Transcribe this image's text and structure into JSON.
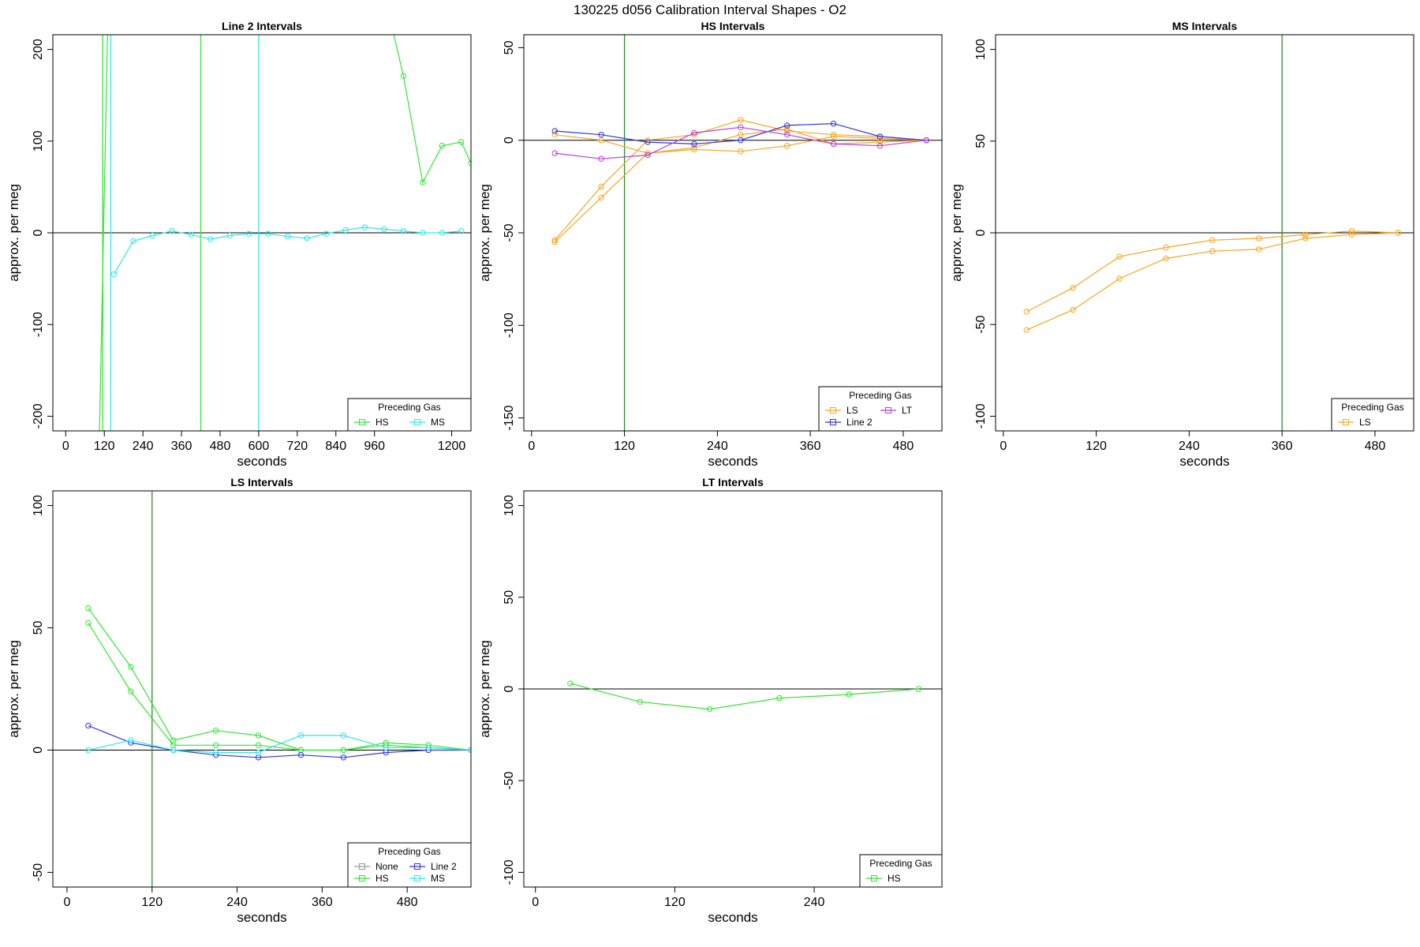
{
  "figure_title": "130225   d056   Calibration Interval Shapes - O2",
  "colors": {
    "None": "#999999",
    "HS": "#33e633",
    "MS": "#33e6e6",
    "LS": "#f5a623",
    "Line 2": "#3333e6",
    "LT": "#b340e6",
    "zero_line": "#000000",
    "HS_vline": "#2e8b2e"
  },
  "chart_data": [
    {
      "type": "line",
      "title": "Line 2 Intervals",
      "xlabel": "seconds",
      "ylabel": "approx. per meg",
      "xlim": [
        -40,
        1260
      ],
      "ylim": [
        -216,
        216
      ],
      "xticks": [
        0,
        120,
        240,
        360,
        480,
        600,
        720,
        840,
        960,
        1200
      ],
      "yticks": [
        -200,
        -100,
        0,
        100,
        200
      ],
      "legend": {
        "title": "Preceding Gas",
        "position": "bottom-right",
        "cols": 2,
        "entries": [
          "HS",
          "MS"
        ]
      },
      "vlines": [
        {
          "x": 115,
          "color": "HS"
        },
        {
          "x": 420,
          "color": "HS"
        },
        {
          "x": 600,
          "color": "MS"
        },
        {
          "x": 140,
          "color": "MS"
        }
      ],
      "series": [
        {
          "name": "HS",
          "x": [
            105,
            130
          ],
          "y": [
            -216,
            216
          ]
        },
        {
          "name": "HS",
          "x": [
            1020,
            1050,
            1110,
            1170,
            1230,
            1260
          ],
          "y": [
            216,
            171,
            55,
            95,
            99,
            76
          ]
        },
        {
          "name": "MS",
          "x": [
            150,
            210,
            270,
            330,
            390,
            450,
            510,
            570,
            630,
            690,
            750,
            810,
            870,
            930,
            990,
            1050,
            1110,
            1170,
            1230
          ],
          "y": [
            -45,
            -9,
            -3,
            2,
            -2,
            -7,
            -3,
            -1,
            -1,
            -4,
            -6,
            -1,
            3,
            6,
            4,
            2,
            0,
            0,
            2
          ]
        }
      ]
    },
    {
      "type": "line",
      "title": "HS Intervals",
      "xlabel": "seconds",
      "ylabel": "approx. per meg",
      "xlim": [
        -10,
        530
      ],
      "ylim": [
        -157,
        57
      ],
      "xticks": [
        0,
        120,
        240,
        360,
        480
      ],
      "yticks": [
        -150,
        -100,
        -50,
        0,
        50
      ],
      "legend": {
        "title": "Preceding Gas",
        "position": "bottom-right",
        "cols": 2,
        "entries": [
          "LS",
          "LT",
          "Line 2"
        ]
      },
      "vlines": [
        {
          "x": 120,
          "color": "HS_vline"
        }
      ],
      "series": [
        {
          "name": "LS",
          "x": [
            30,
            90,
            150,
            210,
            270,
            330,
            390,
            450,
            510
          ],
          "y": [
            -54,
            -25,
            0,
            3,
            11,
            5,
            3,
            2,
            0
          ]
        },
        {
          "name": "LS",
          "x": [
            30,
            90,
            150,
            210,
            270,
            330,
            390,
            450,
            510
          ],
          "y": [
            -55,
            -31,
            -7,
            -5,
            -6,
            -3,
            2,
            1,
            0
          ]
        },
        {
          "name": "LS",
          "x": [
            30,
            90,
            150,
            210,
            270,
            330,
            390,
            450,
            510
          ],
          "y": [
            3,
            0,
            -7,
            -4,
            3,
            6,
            -2,
            -1,
            0
          ]
        },
        {
          "name": "Line 2",
          "x": [
            30,
            90,
            150,
            210,
            270,
            330,
            390,
            450,
            510
          ],
          "y": [
            5,
            3,
            -1,
            -2,
            0,
            8,
            9,
            2,
            0
          ]
        },
        {
          "name": "LT",
          "x": [
            30,
            90,
            150,
            210,
            270,
            330,
            390,
            450,
            510
          ],
          "y": [
            -7,
            -10,
            -8,
            4,
            7,
            3,
            -2,
            -3,
            0
          ]
        }
      ]
    },
    {
      "type": "line",
      "title": "MS Intervals",
      "xlabel": "seconds",
      "ylabel": "approx. per meg",
      "xlim": [
        -10,
        530
      ],
      "ylim": [
        -108,
        108
      ],
      "xticks": [
        0,
        120,
        240,
        360,
        480
      ],
      "yticks": [
        -100,
        -50,
        0,
        50,
        100
      ],
      "legend": {
        "title": "Preceding Gas",
        "position": "bottom-right",
        "cols": 1,
        "entries": [
          "LS"
        ]
      },
      "vlines": [
        {
          "x": 360,
          "color": "HS_vline"
        }
      ],
      "series": [
        {
          "name": "LS",
          "x": [
            30,
            90,
            150,
            210,
            270,
            330,
            390,
            450,
            510
          ],
          "y": [
            -43,
            -30,
            -13,
            -8,
            -4,
            -3,
            -1,
            1,
            0
          ]
        },
        {
          "name": "LS",
          "x": [
            30,
            90,
            150,
            210,
            270,
            330,
            390,
            450,
            510
          ],
          "y": [
            -53,
            -42,
            -25,
            -14,
            -10,
            -9,
            -3,
            -1,
            0
          ]
        }
      ]
    },
    {
      "type": "line",
      "title": "LS Intervals",
      "xlabel": "seconds",
      "ylabel": "approx. per meg",
      "xlim": [
        -20,
        570
      ],
      "ylim": [
        -56,
        106
      ],
      "xticks": [
        0,
        120,
        240,
        360,
        480
      ],
      "yticks": [
        -50,
        0,
        50,
        100
      ],
      "legend": {
        "title": "Preceding Gas",
        "position": "bottom-right",
        "cols": 2,
        "entries": [
          "None",
          "Line 2",
          "HS",
          "MS"
        ]
      },
      "vlines": [
        {
          "x": 120,
          "color": "HS_vline"
        }
      ],
      "series": [
        {
          "name": "HS",
          "x": [
            30,
            90,
            150,
            210,
            270,
            330,
            390,
            450,
            510,
            570
          ],
          "y": [
            58,
            34,
            4,
            8,
            6,
            0,
            0,
            3,
            2,
            0
          ]
        },
        {
          "name": "HS",
          "x": [
            30,
            90,
            150,
            210,
            270,
            330,
            390,
            450,
            510,
            570
          ],
          "y": [
            52,
            24,
            2,
            2,
            2,
            0,
            0,
            2,
            1,
            0
          ]
        },
        {
          "name": "Line 2",
          "x": [
            30,
            90,
            150,
            210,
            270,
            330,
            390,
            450,
            510,
            570
          ],
          "y": [
            10,
            3,
            0,
            -2,
            -3,
            -2,
            -3,
            -1,
            0,
            0
          ]
        },
        {
          "name": "MS",
          "x": [
            30,
            90,
            150,
            210,
            270,
            330,
            390,
            450,
            510,
            570
          ],
          "y": [
            0,
            4,
            0,
            -1,
            -1,
            6,
            6,
            1,
            1,
            0
          ]
        }
      ]
    },
    {
      "type": "line",
      "title": "LT Intervals",
      "xlabel": "seconds",
      "ylabel": "approx. per meg",
      "xlim": [
        -10,
        350
      ],
      "ylim": [
        -108,
        108
      ],
      "xticks": [
        0,
        120,
        240
      ],
      "yticks": [
        -100,
        -50,
        0,
        50,
        100
      ],
      "legend": {
        "title": "Preceding Gas",
        "position": "bottom-right",
        "cols": 1,
        "entries": [
          "HS"
        ]
      },
      "vlines": [],
      "series": [
        {
          "name": "HS",
          "x": [
            30,
            90,
            150,
            210,
            270,
            330
          ],
          "y": [
            3,
            -7,
            -11,
            -5,
            -3,
            0
          ]
        }
      ]
    }
  ]
}
